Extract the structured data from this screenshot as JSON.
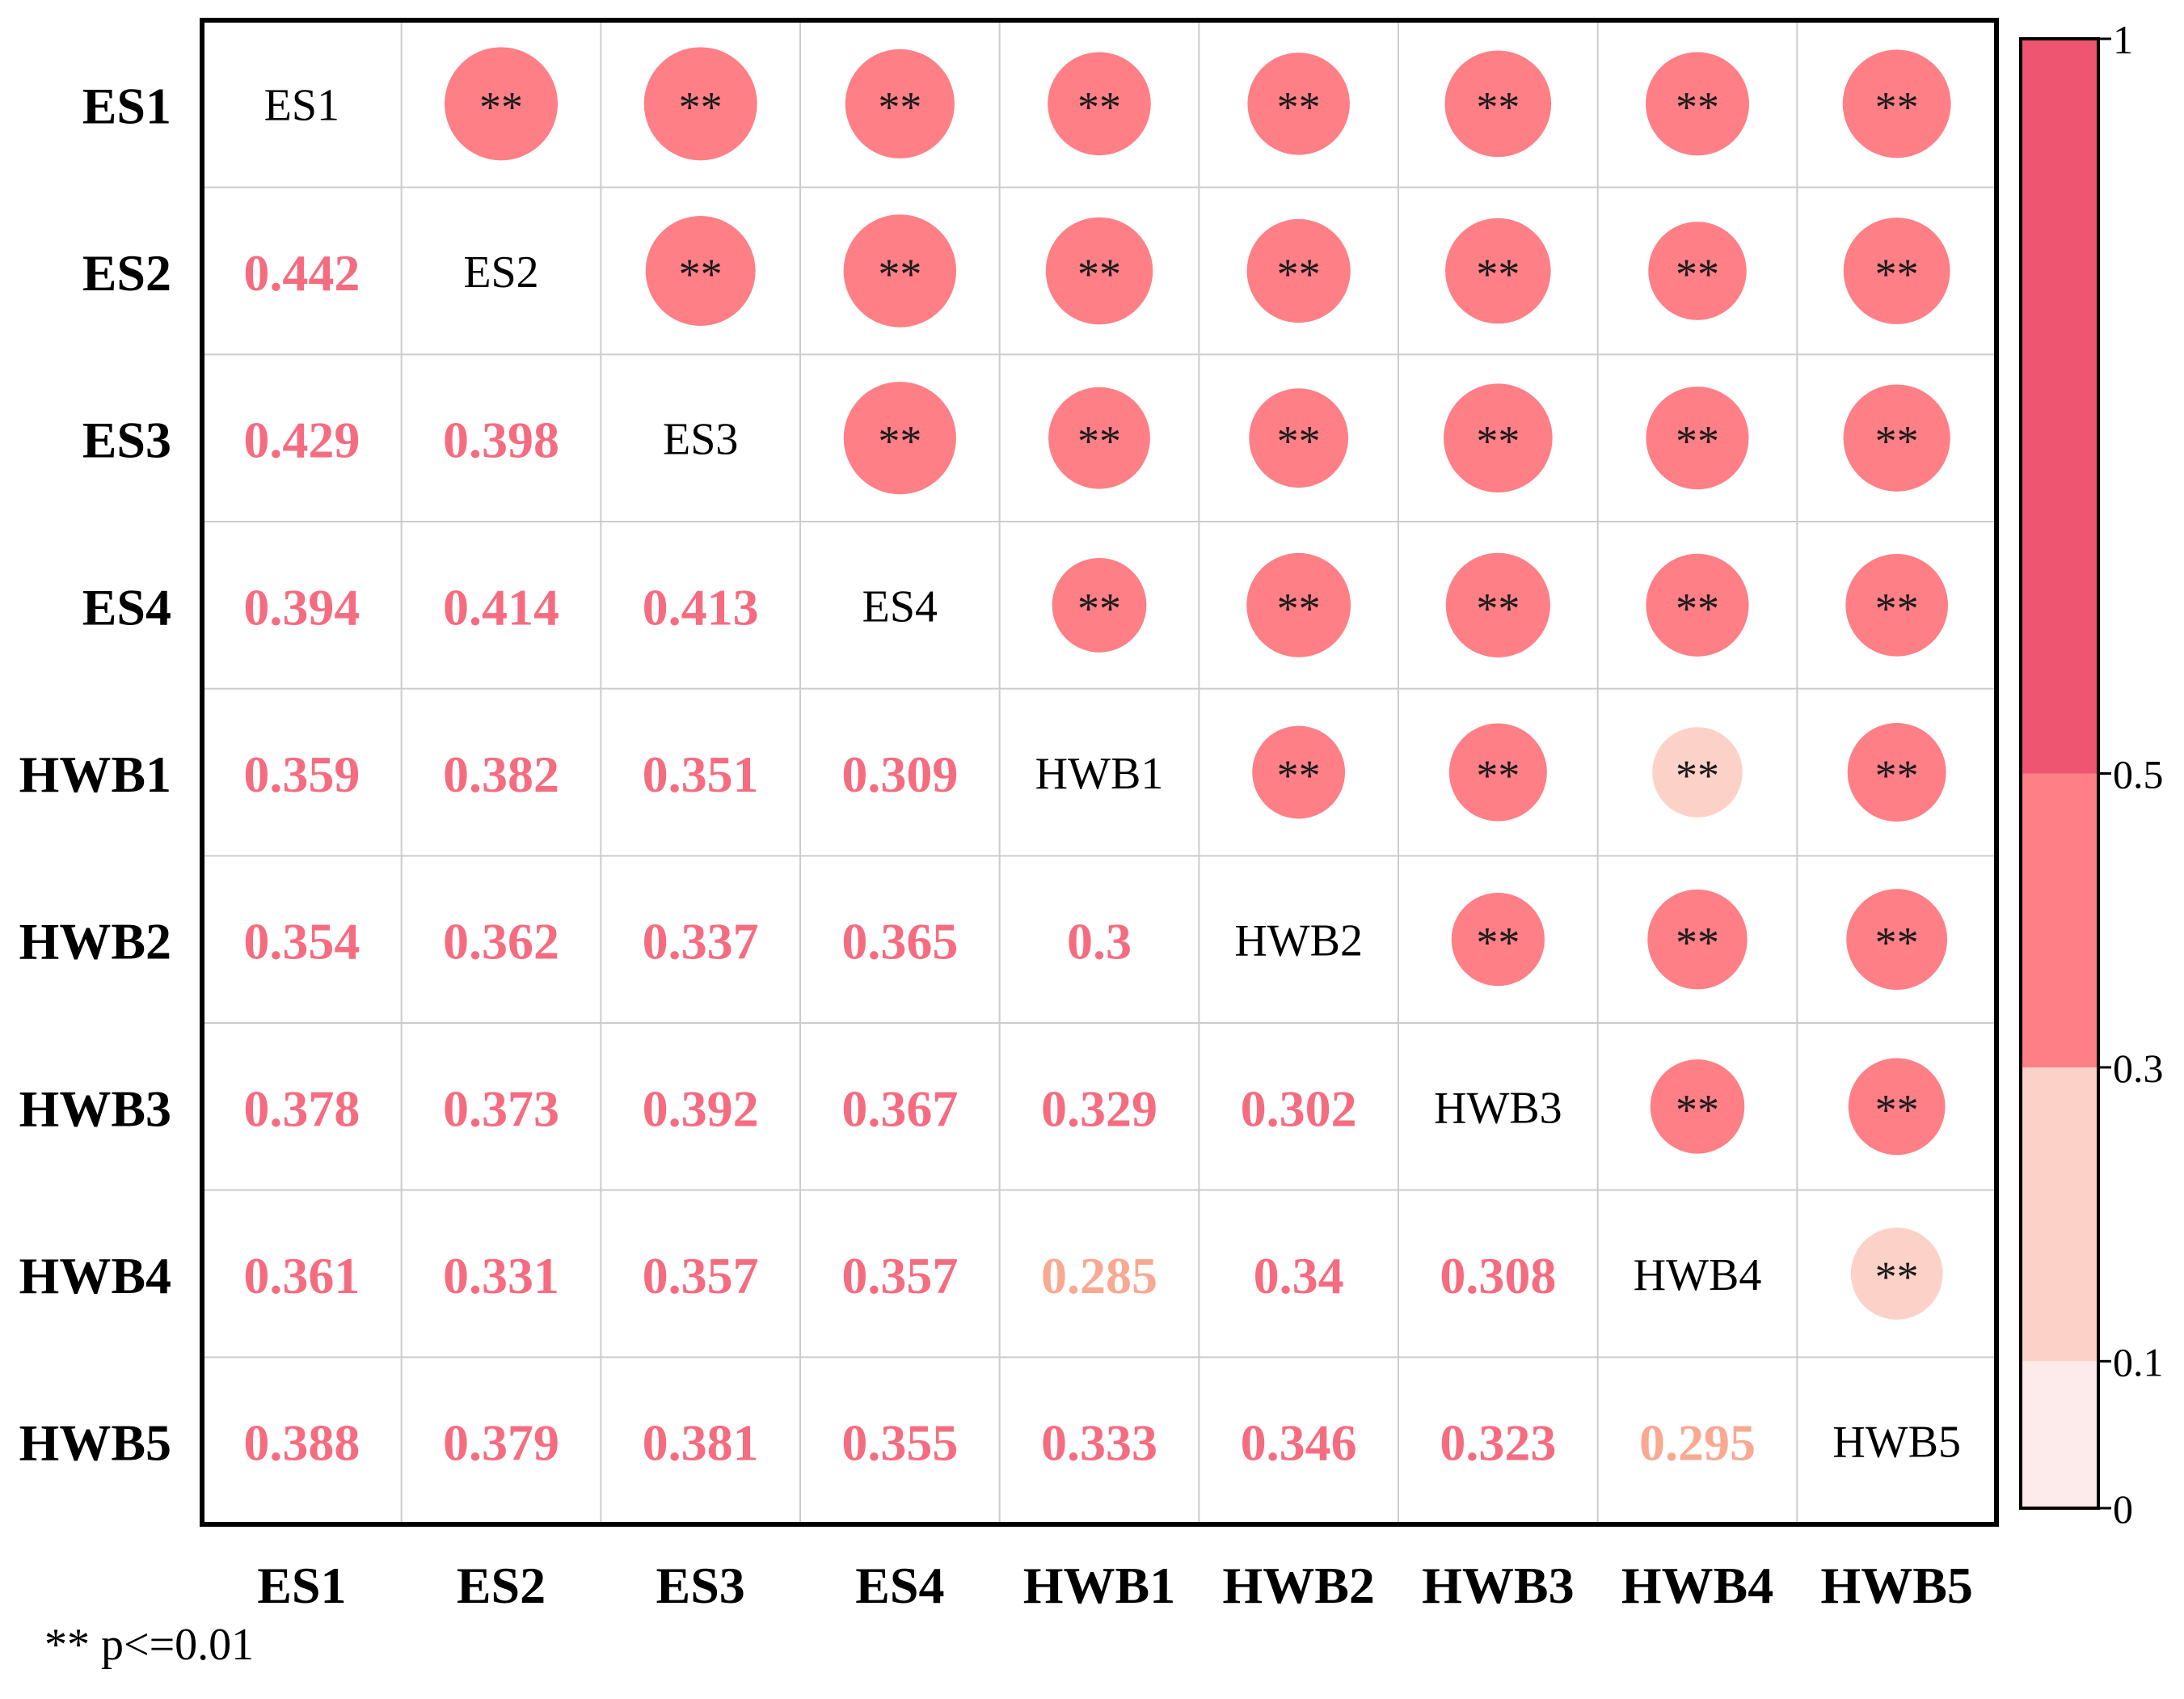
{
  "chart_data": {
    "type": "heatmap",
    "variables": [
      "ES1",
      "ES2",
      "ES3",
      "ES4",
      "HWB1",
      "HWB2",
      "HWB3",
      "HWB4",
      "HWB5"
    ],
    "correlations_lower": [
      [],
      [
        0.442
      ],
      [
        0.429,
        0.398
      ],
      [
        0.394,
        0.414,
        0.413
      ],
      [
        0.359,
        0.382,
        0.351,
        0.309
      ],
      [
        0.354,
        0.362,
        0.337,
        0.365,
        0.3
      ],
      [
        0.378,
        0.373,
        0.392,
        0.367,
        0.329,
        0.302
      ],
      [
        0.361,
        0.331,
        0.357,
        0.357,
        0.285,
        0.34,
        0.308
      ],
      [
        0.388,
        0.379,
        0.381,
        0.355,
        0.333,
        0.346,
        0.323,
        0.295
      ]
    ],
    "significance_marker": "**",
    "footnote": "** p<=0.01",
    "colorbar": {
      "range": [
        0,
        1
      ],
      "ticks": [
        0,
        0.1,
        0.3,
        0.5,
        1
      ],
      "tick_labels": [
        "0",
        "0.1",
        "0.3",
        "0.5",
        "1"
      ],
      "bins": [
        {
          "from": 0,
          "to": 0.1,
          "color": "#fdebeb"
        },
        {
          "from": 0.1,
          "to": 0.3,
          "color": "#fcd2c8"
        },
        {
          "from": 0.3,
          "to": 0.5,
          "color": "#fe7f86"
        },
        {
          "from": 0.5,
          "to": 1,
          "color": "#ee5570"
        }
      ]
    },
    "text_colors": {
      "value_low": "#f9a892",
      "value_high": "#f56c80",
      "diagonal": "#000000",
      "stars": "#1a1a1a"
    },
    "grid": true,
    "legend": "right"
  }
}
